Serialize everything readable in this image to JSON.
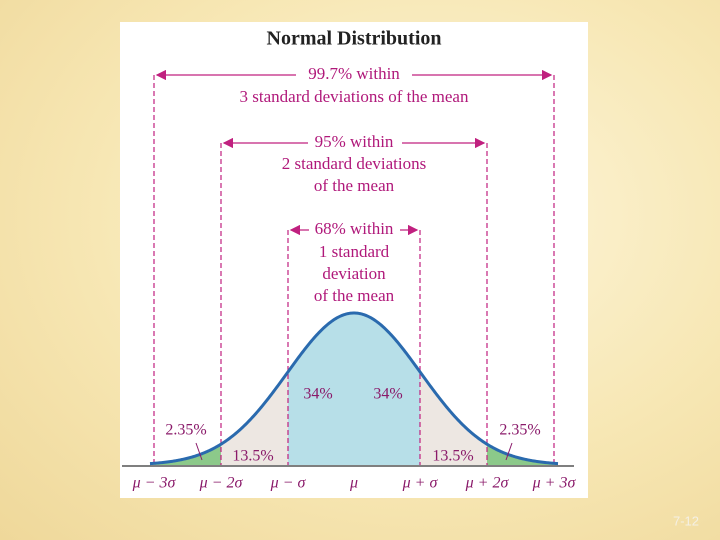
{
  "figure": {
    "title": "Normal Distribution",
    "ranges": [
      {
        "lines": [
          "99.7% within",
          "3 standard deviations of the mean"
        ]
      },
      {
        "lines": [
          "95% within",
          "2 standard deviations",
          "of the mean"
        ]
      },
      {
        "lines": [
          "68% within",
          "1 standard",
          "deviation",
          "of the mean"
        ]
      }
    ],
    "regions": {
      "center_left": "34%",
      "center_right": "34%",
      "mid_left": "13.5%",
      "mid_right": "13.5%",
      "tail_left": "2.35%",
      "tail_right": "2.35%"
    },
    "axis_labels": [
      "μ − 3σ",
      "μ − 2σ",
      "μ − σ",
      "μ",
      "μ + σ",
      "μ + 2σ",
      "μ + 3σ"
    ]
  },
  "slide": {
    "number": "7-12"
  }
}
